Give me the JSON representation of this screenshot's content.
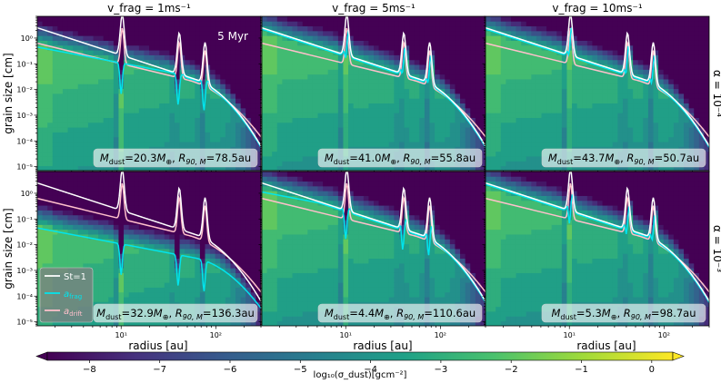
{
  "chart_data": {
    "type": "heatmap",
    "layout": {
      "rows": 2,
      "cols": 3
    },
    "column_titles": [
      "v_frag = 1ms⁻¹",
      "v_frag = 5ms⁻¹",
      "v_frag = 10ms⁻¹"
    ],
    "row_titles": [
      "α = 10⁻⁴",
      "α = 10⁻³"
    ],
    "xlabel": "radius [au]",
    "ylabel": "grain size [cm]",
    "x_scale": "log",
    "y_scale": "log",
    "xlim": [
      1.3,
      300
    ],
    "ylim": [
      7e-06,
      7
    ],
    "x_ticks": [
      "10¹",
      "10²"
    ],
    "x_tick_values": [
      10,
      100
    ],
    "y_ticks": [
      "10⁰",
      "10⁻¹",
      "10⁻²",
      "10⁻³",
      "10⁻⁴",
      "10⁻⁵"
    ],
    "y_tick_values": [
      1,
      0.1,
      0.01,
      0.001,
      0.0001,
      1e-05
    ],
    "time_label": "5 Myr",
    "gap_radii_au": [
      10,
      40,
      75
    ],
    "colorbar": {
      "label": "log₁₀(σ_dust)[gcm⁻²]",
      "ticks": [
        "−8",
        "−7",
        "−6",
        "−5",
        "−4",
        "−3",
        "−2",
        "−1",
        "0"
      ],
      "range": [
        -8.6,
        0.3
      ],
      "colormap": "viridis",
      "colors": [
        "#440154",
        "#46327e",
        "#365c8d",
        "#277f8e",
        "#1fa187",
        "#4ac16d",
        "#a0da39",
        "#fde725"
      ]
    },
    "legend": {
      "placement": "lower-left",
      "entries": [
        {
          "label": "St=1",
          "color": "#ffffff"
        },
        {
          "label": "a_frag",
          "color": "#00e5ee"
        },
        {
          "label": "a_drift",
          "color": "#ffc0cb"
        }
      ]
    },
    "panels": [
      {
        "row": 0,
        "col": 0,
        "v_frag": 1,
        "alpha": "1e-4",
        "M_dust": "20.3",
        "R90": "78.5"
      },
      {
        "row": 0,
        "col": 1,
        "v_frag": 5,
        "alpha": "1e-4",
        "M_dust": "41.0",
        "R90": "55.8"
      },
      {
        "row": 0,
        "col": 2,
        "v_frag": 10,
        "alpha": "1e-4",
        "M_dust": "43.7",
        "R90": "50.7"
      },
      {
        "row": 1,
        "col": 0,
        "v_frag": 1,
        "alpha": "1e-3",
        "M_dust": "32.9",
        "R90": "136.3"
      },
      {
        "row": 1,
        "col": 1,
        "v_frag": 5,
        "alpha": "1e-3",
        "M_dust": "4.4",
        "R90": "110.6"
      },
      {
        "row": 1,
        "col": 2,
        "v_frag": 10,
        "alpha": "1e-3",
        "M_dust": "5.3",
        "R90": "98.7"
      }
    ]
  }
}
